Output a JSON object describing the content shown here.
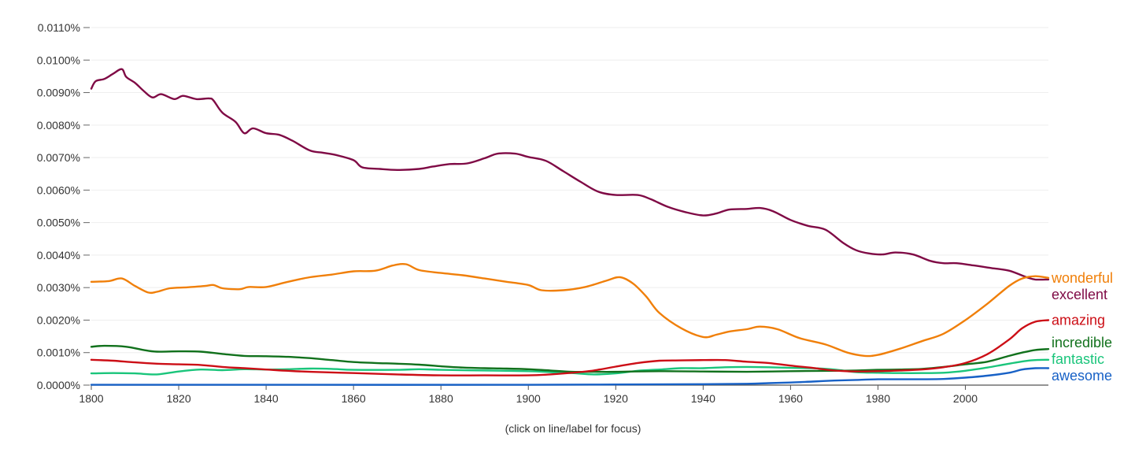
{
  "chart_data": {
    "type": "line",
    "grid": true,
    "legend": "inline labels at right end of lines",
    "ylim": [
      0,
      0.011
    ],
    "xlim": [
      1800,
      2019
    ],
    "x_ticks": [
      1800,
      1820,
      1840,
      1860,
      1880,
      1900,
      1920,
      1940,
      1960,
      1980,
      2000
    ],
    "y_ticks": [
      {
        "value": 0.0,
        "label": "0.0000%"
      },
      {
        "value": 0.001,
        "label": "0.0010%"
      },
      {
        "value": 0.002,
        "label": "0.0020%"
      },
      {
        "value": 0.003,
        "label": "0.0030%"
      },
      {
        "value": 0.004,
        "label": "0.0040%"
      },
      {
        "value": 0.005,
        "label": "0.0050%"
      },
      {
        "value": 0.006,
        "label": "0.0060%"
      },
      {
        "value": 0.007,
        "label": "0.0070%"
      },
      {
        "value": 0.008,
        "label": "0.0080%"
      },
      {
        "value": 0.009,
        "label": "0.0090%"
      },
      {
        "value": 0.01,
        "label": "0.0100%"
      },
      {
        "value": 0.011,
        "label": "0.0110%"
      }
    ],
    "series": [
      {
        "name": "wonderful",
        "color": "#f07f09",
        "points": [
          [
            1800,
            0.00318
          ],
          [
            1804,
            0.0032
          ],
          [
            1807,
            0.00328
          ],
          [
            1810,
            0.00305
          ],
          [
            1813,
            0.00285
          ],
          [
            1815,
            0.00287
          ],
          [
            1818,
            0.00298
          ],
          [
            1822,
            0.00301
          ],
          [
            1826,
            0.00305
          ],
          [
            1828,
            0.00308
          ],
          [
            1830,
            0.00298
          ],
          [
            1834,
            0.00295
          ],
          [
            1836,
            0.00302
          ],
          [
            1840,
            0.00302
          ],
          [
            1845,
            0.00318
          ],
          [
            1850,
            0.00332
          ],
          [
            1855,
            0.0034
          ],
          [
            1860,
            0.0035
          ],
          [
            1865,
            0.00352
          ],
          [
            1869,
            0.00368
          ],
          [
            1872,
            0.00372
          ],
          [
            1875,
            0.00354
          ],
          [
            1880,
            0.00345
          ],
          [
            1885,
            0.00338
          ],
          [
            1890,
            0.00328
          ],
          [
            1895,
            0.00318
          ],
          [
            1900,
            0.00308
          ],
          [
            1903,
            0.00292
          ],
          [
            1908,
            0.00292
          ],
          [
            1913,
            0.00302
          ],
          [
            1918,
            0.00322
          ],
          [
            1921,
            0.00332
          ],
          [
            1924,
            0.00312
          ],
          [
            1927,
            0.00272
          ],
          [
            1930,
            0.00222
          ],
          [
            1935,
            0.00175
          ],
          [
            1940,
            0.00148
          ],
          [
            1943,
            0.00155
          ],
          [
            1946,
            0.00165
          ],
          [
            1950,
            0.00172
          ],
          [
            1953,
            0.0018
          ],
          [
            1957,
            0.00172
          ],
          [
            1962,
            0.00145
          ],
          [
            1968,
            0.00125
          ],
          [
            1973,
            0.001
          ],
          [
            1977,
            0.0009
          ],
          [
            1980,
            0.00093
          ],
          [
            1985,
            0.00112
          ],
          [
            1990,
            0.00135
          ],
          [
            1995,
            0.00158
          ],
          [
            2000,
            0.002
          ],
          [
            2005,
            0.0025
          ],
          [
            2010,
            0.00305
          ],
          [
            2013,
            0.00328
          ],
          [
            2016,
            0.00335
          ],
          [
            2019,
            0.0033
          ]
        ]
      },
      {
        "name": "excellent",
        "color": "#7f0a45",
        "points": [
          [
            1800,
            0.00912
          ],
          [
            1801,
            0.00935
          ],
          [
            1803,
            0.00942
          ],
          [
            1805,
            0.00958
          ],
          [
            1807,
            0.00972
          ],
          [
            1808,
            0.00948
          ],
          [
            1810,
            0.0093
          ],
          [
            1812,
            0.00905
          ],
          [
            1814,
            0.00885
          ],
          [
            1816,
            0.00895
          ],
          [
            1819,
            0.0088
          ],
          [
            1821,
            0.0089
          ],
          [
            1824,
            0.0088
          ],
          [
            1827,
            0.00882
          ],
          [
            1828,
            0.00875
          ],
          [
            1830,
            0.00838
          ],
          [
            1833,
            0.0081
          ],
          [
            1835,
            0.00775
          ],
          [
            1837,
            0.0079
          ],
          [
            1840,
            0.00775
          ],
          [
            1843,
            0.0077
          ],
          [
            1846,
            0.00752
          ],
          [
            1850,
            0.00722
          ],
          [
            1853,
            0.00715
          ],
          [
            1856,
            0.00708
          ],
          [
            1860,
            0.00692
          ],
          [
            1862,
            0.0067
          ],
          [
            1866,
            0.00665
          ],
          [
            1870,
            0.00662
          ],
          [
            1875,
            0.00665
          ],
          [
            1878,
            0.00672
          ],
          [
            1882,
            0.0068
          ],
          [
            1886,
            0.00682
          ],
          [
            1890,
            0.00698
          ],
          [
            1893,
            0.00712
          ],
          [
            1897,
            0.00712
          ],
          [
            1900,
            0.00702
          ],
          [
            1904,
            0.0069
          ],
          [
            1908,
            0.00658
          ],
          [
            1912,
            0.00625
          ],
          [
            1916,
            0.00595
          ],
          [
            1920,
            0.00585
          ],
          [
            1925,
            0.00585
          ],
          [
            1928,
            0.00572
          ],
          [
            1932,
            0.00548
          ],
          [
            1936,
            0.00532
          ],
          [
            1940,
            0.00522
          ],
          [
            1943,
            0.00528
          ],
          [
            1946,
            0.0054
          ],
          [
            1950,
            0.00542
          ],
          [
            1953,
            0.00545
          ],
          [
            1956,
            0.00535
          ],
          [
            1960,
            0.00508
          ],
          [
            1964,
            0.0049
          ],
          [
            1968,
            0.00478
          ],
          [
            1972,
            0.00438
          ],
          [
            1975,
            0.00415
          ],
          [
            1978,
            0.00405
          ],
          [
            1981,
            0.00402
          ],
          [
            1984,
            0.00408
          ],
          [
            1988,
            0.00402
          ],
          [
            1992,
            0.00382
          ],
          [
            1995,
            0.00375
          ],
          [
            1998,
            0.00375
          ],
          [
            2002,
            0.00368
          ],
          [
            2006,
            0.0036
          ],
          [
            2010,
            0.00352
          ],
          [
            2014,
            0.00332
          ],
          [
            2016,
            0.00325
          ],
          [
            2019,
            0.00325
          ]
        ]
      },
      {
        "name": "amazing",
        "color": "#cc0e16",
        "points": [
          [
            1800,
            0.00078
          ],
          [
            1805,
            0.00075
          ],
          [
            1810,
            0.0007
          ],
          [
            1815,
            0.00066
          ],
          [
            1820,
            0.00064
          ],
          [
            1825,
            0.00062
          ],
          [
            1830,
            0.00056
          ],
          [
            1835,
            0.00052
          ],
          [
            1840,
            0.00048
          ],
          [
            1845,
            0.00044
          ],
          [
            1850,
            0.00041
          ],
          [
            1860,
            0.00037
          ],
          [
            1870,
            0.00033
          ],
          [
            1880,
            0.0003
          ],
          [
            1890,
            0.0003
          ],
          [
            1900,
            0.0003
          ],
          [
            1905,
            0.00033
          ],
          [
            1910,
            0.00038
          ],
          [
            1915,
            0.00045
          ],
          [
            1920,
            0.00057
          ],
          [
            1925,
            0.00068
          ],
          [
            1930,
            0.00075
          ],
          [
            1935,
            0.00076
          ],
          [
            1940,
            0.00077
          ],
          [
            1945,
            0.00077
          ],
          [
            1950,
            0.00072
          ],
          [
            1955,
            0.00068
          ],
          [
            1960,
            0.0006
          ],
          [
            1965,
            0.00053
          ],
          [
            1970,
            0.00045
          ],
          [
            1975,
            0.00042
          ],
          [
            1980,
            0.00043
          ],
          [
            1985,
            0.00045
          ],
          [
            1990,
            0.00048
          ],
          [
            1995,
            0.00055
          ],
          [
            2000,
            0.00068
          ],
          [
            2005,
            0.00095
          ],
          [
            2010,
            0.0014
          ],
          [
            2013,
            0.00175
          ],
          [
            2016,
            0.00195
          ],
          [
            2019,
            0.002
          ]
        ]
      },
      {
        "name": "incredible",
        "color": "#11711c",
        "points": [
          [
            1800,
            0.00118
          ],
          [
            1803,
            0.00121
          ],
          [
            1808,
            0.00118
          ],
          [
            1812,
            0.00108
          ],
          [
            1815,
            0.00103
          ],
          [
            1820,
            0.00104
          ],
          [
            1825,
            0.00103
          ],
          [
            1830,
            0.00096
          ],
          [
            1835,
            0.0009
          ],
          [
            1840,
            0.00089
          ],
          [
            1845,
            0.00087
          ],
          [
            1850,
            0.00083
          ],
          [
            1855,
            0.00077
          ],
          [
            1860,
            0.00071
          ],
          [
            1865,
            0.00068
          ],
          [
            1870,
            0.00066
          ],
          [
            1875,
            0.00063
          ],
          [
            1880,
            0.00058
          ],
          [
            1885,
            0.00054
          ],
          [
            1890,
            0.00052
          ],
          [
            1895,
            0.00051
          ],
          [
            1900,
            0.00049
          ],
          [
            1905,
            0.00045
          ],
          [
            1910,
            0.00041
          ],
          [
            1915,
            0.00041
          ],
          [
            1920,
            0.00041
          ],
          [
            1930,
            0.00043
          ],
          [
            1940,
            0.00042
          ],
          [
            1950,
            0.00041
          ],
          [
            1960,
            0.00043
          ],
          [
            1970,
            0.00044
          ],
          [
            1975,
            0.00045
          ],
          [
            1980,
            0.00047
          ],
          [
            1985,
            0.00048
          ],
          [
            1990,
            0.0005
          ],
          [
            1995,
            0.00056
          ],
          [
            2000,
            0.00064
          ],
          [
            2005,
            0.00072
          ],
          [
            2010,
            0.0009
          ],
          [
            2013,
            0.001
          ],
          [
            2016,
            0.00108
          ],
          [
            2019,
            0.00111
          ]
        ]
      },
      {
        "name": "fantastic",
        "color": "#1ac57b",
        "points": [
          [
            1800,
            0.00036
          ],
          [
            1805,
            0.00037
          ],
          [
            1810,
            0.00036
          ],
          [
            1815,
            0.00033
          ],
          [
            1820,
            0.00042
          ],
          [
            1825,
            0.00048
          ],
          [
            1830,
            0.00046
          ],
          [
            1835,
            0.00049
          ],
          [
            1840,
            0.00048
          ],
          [
            1845,
            0.00049
          ],
          [
            1850,
            0.00051
          ],
          [
            1855,
            0.0005
          ],
          [
            1860,
            0.00047
          ],
          [
            1870,
            0.00047
          ],
          [
            1875,
            0.00049
          ],
          [
            1880,
            0.00047
          ],
          [
            1890,
            0.00045
          ],
          [
            1900,
            0.00043
          ],
          [
            1905,
            0.0004
          ],
          [
            1910,
            0.00037
          ],
          [
            1915,
            0.00033
          ],
          [
            1920,
            0.00036
          ],
          [
            1925,
            0.00044
          ],
          [
            1930,
            0.00048
          ],
          [
            1935,
            0.00052
          ],
          [
            1940,
            0.00052
          ],
          [
            1945,
            0.00055
          ],
          [
            1950,
            0.00056
          ],
          [
            1955,
            0.00055
          ],
          [
            1960,
            0.00053
          ],
          [
            1965,
            0.00052
          ],
          [
            1970,
            0.00048
          ],
          [
            1975,
            0.0004
          ],
          [
            1980,
            0.00038
          ],
          [
            1985,
            0.00037
          ],
          [
            1990,
            0.00037
          ],
          [
            1995,
            0.00038
          ],
          [
            2000,
            0.00044
          ],
          [
            2005,
            0.00054
          ],
          [
            2010,
            0.00066
          ],
          [
            2015,
            0.00076
          ],
          [
            2019,
            0.00078
          ]
        ]
      },
      {
        "name": "awesome",
        "color": "#1761c6",
        "points": [
          [
            1800,
            1e-05
          ],
          [
            1850,
            1e-05
          ],
          [
            1900,
            1e-05
          ],
          [
            1920,
            2e-05
          ],
          [
            1940,
            3e-05
          ],
          [
            1950,
            4e-05
          ],
          [
            1955,
            6e-05
          ],
          [
            1960,
            8e-05
          ],
          [
            1965,
            0.00011
          ],
          [
            1970,
            0.00014
          ],
          [
            1975,
            0.00016
          ],
          [
            1980,
            0.00018
          ],
          [
            1985,
            0.00018
          ],
          [
            1990,
            0.00018
          ],
          [
            1995,
            0.00019
          ],
          [
            2000,
            0.00023
          ],
          [
            2005,
            0.00029
          ],
          [
            2010,
            0.00038
          ],
          [
            2013,
            0.00048
          ],
          [
            2016,
            0.00052
          ],
          [
            2019,
            0.00052
          ]
        ]
      }
    ]
  },
  "footer_note": "(click on line/label for focus)"
}
